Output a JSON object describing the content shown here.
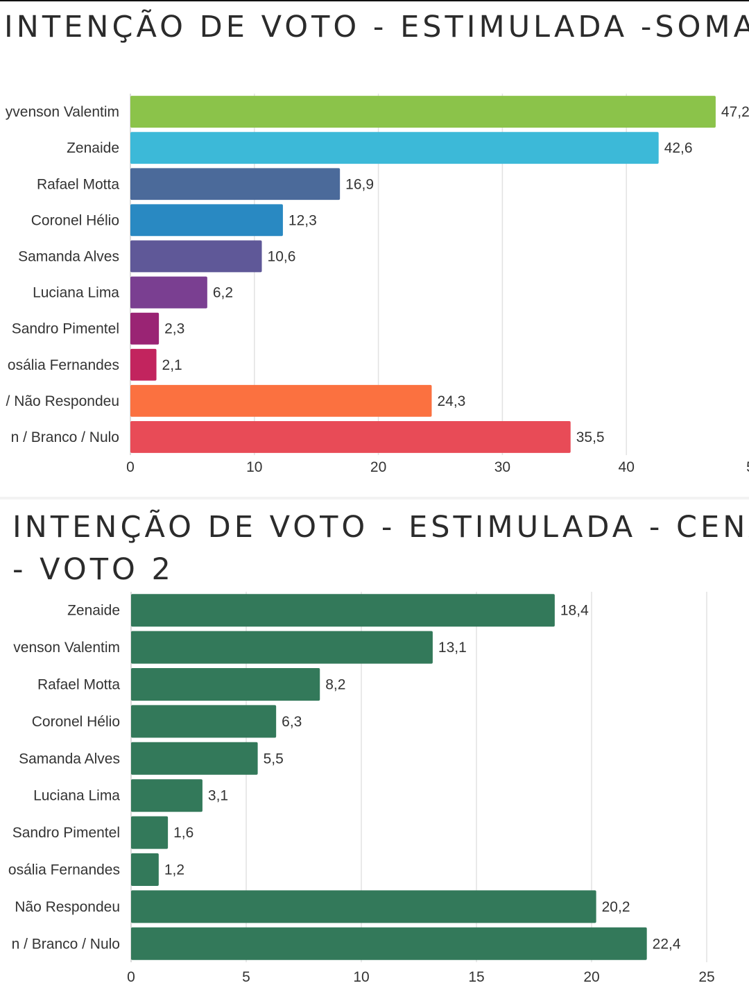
{
  "chart_data": [
    {
      "type": "bar",
      "orientation": "horizontal",
      "title": "INTENÇÃO DE VOTO - ESTIMULADA -SOMA V",
      "categories": [
        "yvenson Valentim",
        "Zenaide",
        "Rafael Motta",
        "Coronel Hélio",
        "Samanda Alves",
        "Luciana Lima",
        "Sandro Pimentel",
        "osália Fernandes",
        "/ Não Respondeu",
        "n / Branco / Nulo"
      ],
      "values": [
        47.2,
        42.6,
        16.9,
        12.3,
        10.6,
        6.2,
        2.3,
        2.1,
        24.3,
        35.5
      ],
      "value_labels": [
        "47,2",
        "42,6",
        "16,9",
        "12,3",
        "10,6",
        "6,2",
        "2,3",
        "2,1",
        "24,3",
        "35,5"
      ],
      "colors": [
        "#8bc34a",
        "#3cb9d8",
        "#4b6a9a",
        "#2989c2",
        "#5f5898",
        "#7a3f91",
        "#9a2474",
        "#c2245e",
        "#fb7140",
        "#e84b57"
      ],
      "xlim": [
        0,
        50
      ],
      "xticks": [
        "0",
        "10",
        "20",
        "30",
        "40",
        "5"
      ],
      "grid": true,
      "legend": "none"
    },
    {
      "type": "bar",
      "orientation": "horizontal",
      "title": [
        "INTENÇÃO DE VOTO - ESTIMULADA - CENÁ",
        "- VOTO 2"
      ],
      "categories": [
        "Zenaide",
        "venson Valentim",
        "Rafael Motta",
        "Coronel Hélio",
        "Samanda Alves",
        "Luciana Lima",
        "Sandro Pimentel",
        "osália Fernandes",
        "Não Respondeu",
        "n / Branco / Nulo"
      ],
      "values": [
        18.4,
        13.1,
        8.2,
        6.3,
        5.5,
        3.1,
        1.6,
        1.2,
        20.2,
        22.4
      ],
      "value_labels": [
        "18,4",
        "13,1",
        "8,2",
        "6,3",
        "5,5",
        "3,1",
        "1,6",
        "1,2",
        "20,2",
        "22,4"
      ],
      "color": "#33795a",
      "xlim": [
        0,
        25
      ],
      "xticks": [
        "0",
        "5",
        "10",
        "15",
        "20",
        "25"
      ],
      "grid": true,
      "legend": "none"
    }
  ]
}
